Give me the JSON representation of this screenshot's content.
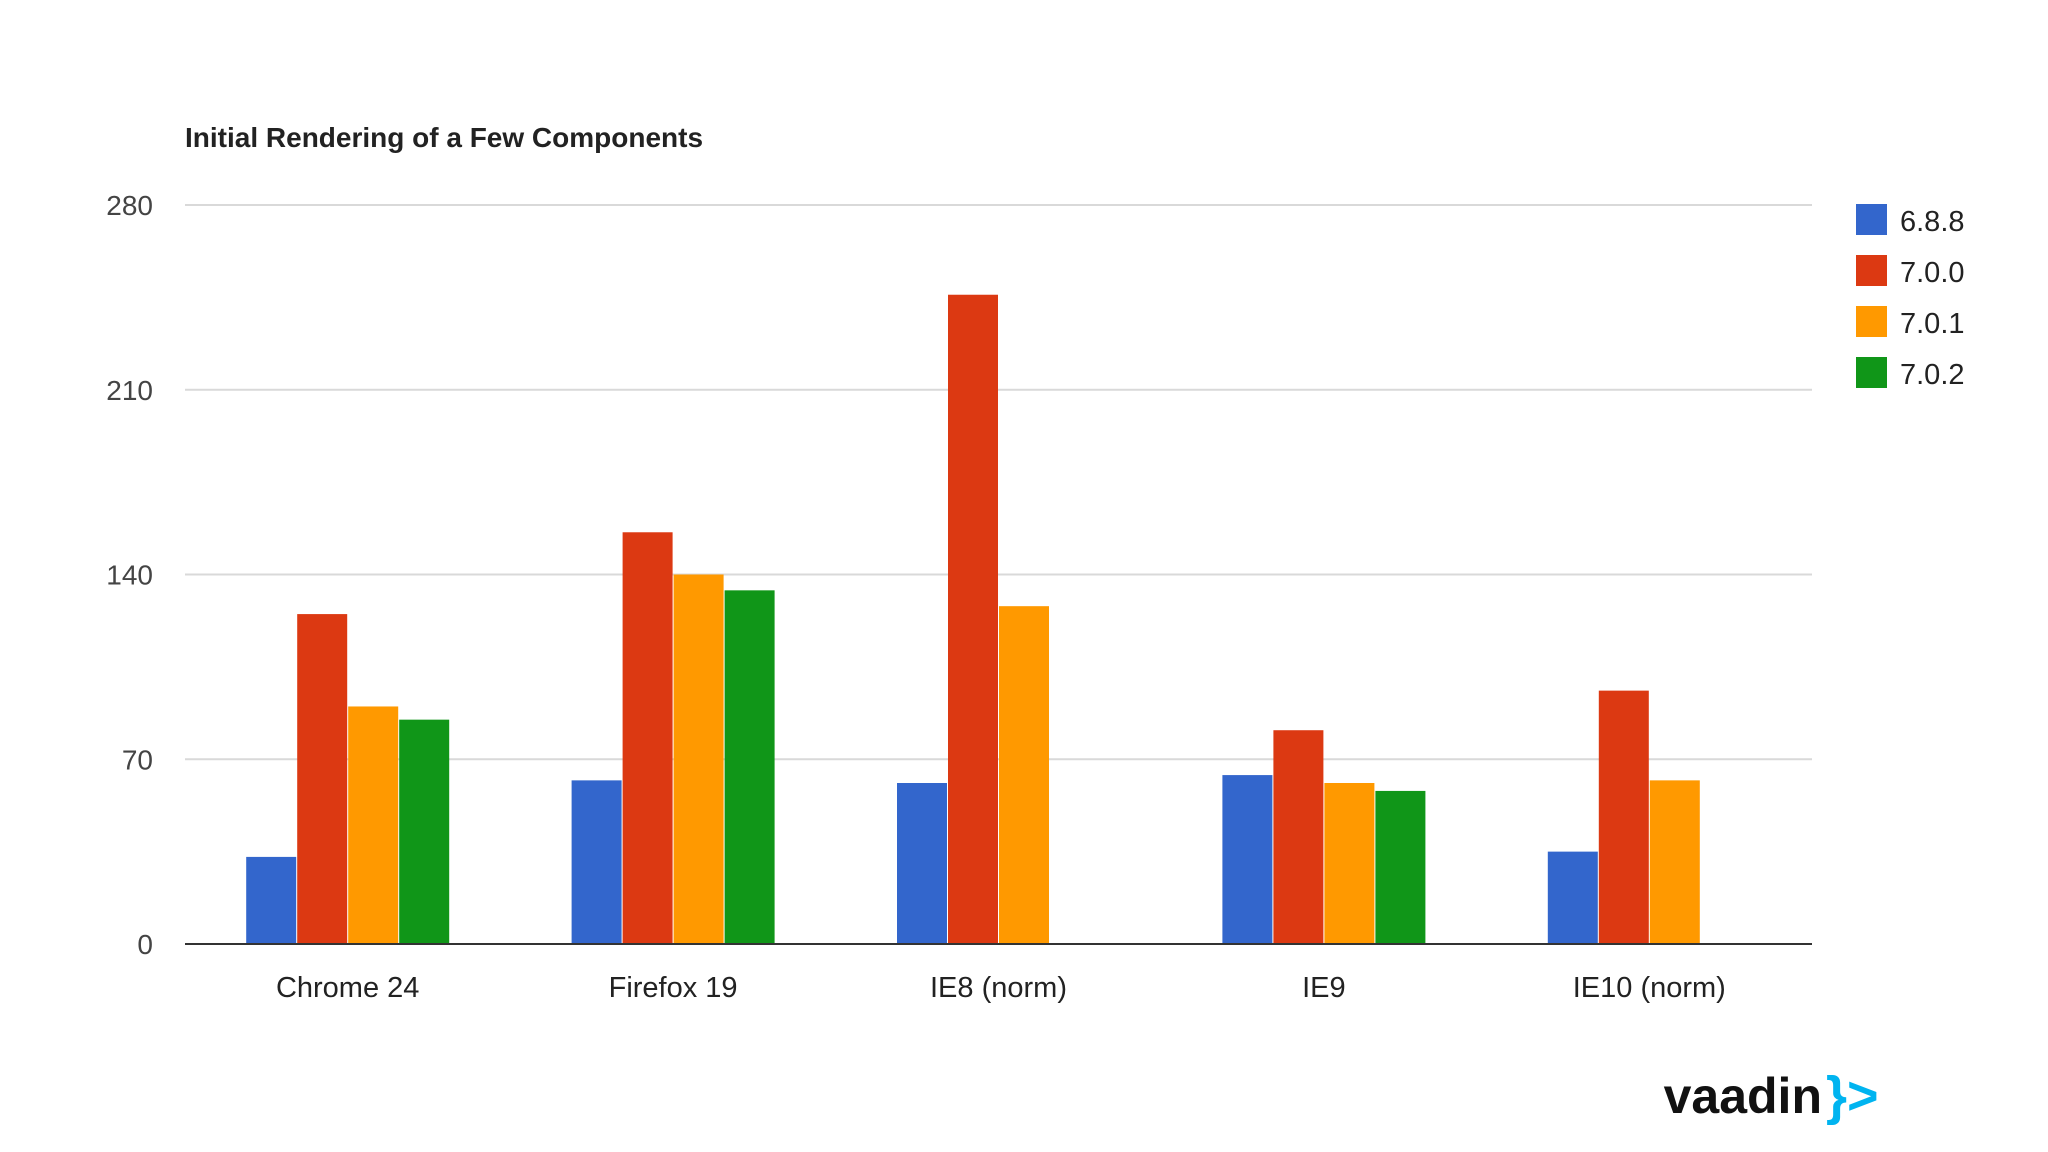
{
  "logo": {
    "text": "vaadin",
    "mark": "}>",
    "mark_color": "#00b4f0"
  },
  "chart_data": {
    "type": "bar",
    "title": "Initial Rendering of a Few Components",
    "xlabel": "",
    "ylabel": "",
    "ylim": [
      0,
      280
    ],
    "yticks": [
      0,
      70,
      140,
      210,
      280
    ],
    "grid": true,
    "legend_position": "right",
    "categories": [
      "Chrome 24",
      "Firefox 19",
      "IE8 (norm)",
      "IE9",
      "IE10 (norm)"
    ],
    "series": [
      {
        "name": "6.8.8",
        "color": "#3366cc",
        "values": [
          33,
          62,
          61,
          64,
          35
        ]
      },
      {
        "name": "7.0.0",
        "color": "#dc3912",
        "values": [
          125,
          156,
          246,
          81,
          96
        ]
      },
      {
        "name": "7.0.1",
        "color": "#ff9900",
        "values": [
          90,
          140,
          128,
          61,
          62
        ]
      },
      {
        "name": "7.0.2",
        "color": "#109618",
        "values": [
          85,
          134,
          null,
          58,
          null
        ]
      }
    ]
  }
}
